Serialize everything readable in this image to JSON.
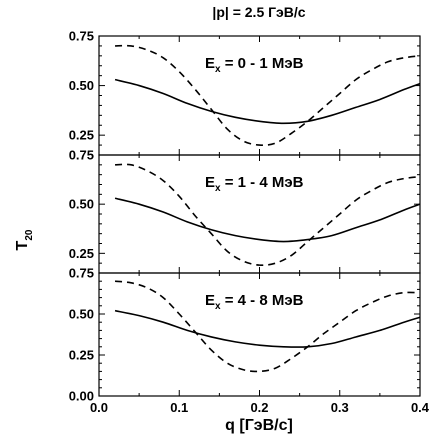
{
  "title": "|p| = 2.5 ГэВ/с",
  "x_axis": {
    "label": "q [ГэВ/с]",
    "ticks": [
      "0.0",
      "0.1",
      "0.2",
      "0.3",
      "0.4"
    ]
  },
  "y_axis": {
    "label_main": "T",
    "label_sub": "20"
  },
  "bottom_y_tick_labels": [
    "0.00",
    "0.25",
    "0.50",
    "0.75"
  ],
  "upper_y_tick_labels": [
    "0.25",
    "0.50",
    "0.75"
  ],
  "chart_data": [
    {
      "type": "line",
      "panel_label": {
        "main": "E",
        "sub": "x",
        "rest": " = 0 - 1 МэВ"
      },
      "xlim": [
        0,
        0.4
      ],
      "ylim": [
        0.15,
        0.75
      ],
      "series": [
        {
          "style": "solid",
          "x": [
            0.02,
            0.05,
            0.08,
            0.11,
            0.14,
            0.17,
            0.2,
            0.23,
            0.26,
            0.29,
            0.32,
            0.35,
            0.38,
            0.4
          ],
          "y": [
            0.53,
            0.5,
            0.46,
            0.41,
            0.37,
            0.34,
            0.32,
            0.31,
            0.32,
            0.35,
            0.39,
            0.43,
            0.48,
            0.51
          ]
        },
        {
          "style": "dashed",
          "x": [
            0.02,
            0.04,
            0.06,
            0.08,
            0.1,
            0.12,
            0.14,
            0.16,
            0.18,
            0.2,
            0.22,
            0.24,
            0.26,
            0.28,
            0.3,
            0.32,
            0.34,
            0.36,
            0.38,
            0.4
          ],
          "y": [
            0.7,
            0.7,
            0.68,
            0.64,
            0.57,
            0.48,
            0.38,
            0.28,
            0.22,
            0.2,
            0.21,
            0.26,
            0.32,
            0.39,
            0.46,
            0.53,
            0.58,
            0.62,
            0.64,
            0.65
          ]
        }
      ]
    },
    {
      "type": "line",
      "panel_label": {
        "main": "E",
        "sub": "x",
        "rest": " = 1 - 4 МэВ"
      },
      "xlim": [
        0,
        0.4
      ],
      "ylim": [
        0.15,
        0.75
      ],
      "series": [
        {
          "style": "solid",
          "x": [
            0.02,
            0.05,
            0.08,
            0.11,
            0.14,
            0.17,
            0.2,
            0.23,
            0.26,
            0.29,
            0.32,
            0.35,
            0.38,
            0.4
          ],
          "y": [
            0.53,
            0.5,
            0.46,
            0.41,
            0.37,
            0.34,
            0.32,
            0.31,
            0.32,
            0.34,
            0.38,
            0.42,
            0.47,
            0.5
          ]
        },
        {
          "style": "dashed",
          "x": [
            0.02,
            0.04,
            0.06,
            0.08,
            0.1,
            0.12,
            0.14,
            0.16,
            0.18,
            0.2,
            0.22,
            0.24,
            0.26,
            0.28,
            0.3,
            0.32,
            0.34,
            0.36,
            0.38,
            0.4
          ],
          "y": [
            0.7,
            0.7,
            0.67,
            0.62,
            0.54,
            0.44,
            0.35,
            0.26,
            0.21,
            0.19,
            0.2,
            0.24,
            0.31,
            0.38,
            0.45,
            0.52,
            0.57,
            0.61,
            0.63,
            0.64
          ]
        }
      ]
    },
    {
      "type": "line",
      "panel_label": {
        "main": "E",
        "sub": "x",
        "rest": " = 4 - 8 МэВ"
      },
      "xlim": [
        0,
        0.4
      ],
      "ylim": [
        0,
        0.75
      ],
      "series": [
        {
          "style": "solid",
          "x": [
            0.02,
            0.05,
            0.08,
            0.11,
            0.14,
            0.17,
            0.2,
            0.23,
            0.26,
            0.29,
            0.32,
            0.35,
            0.38,
            0.4
          ],
          "y": [
            0.52,
            0.49,
            0.45,
            0.4,
            0.36,
            0.33,
            0.31,
            0.3,
            0.3,
            0.32,
            0.36,
            0.4,
            0.45,
            0.48
          ]
        },
        {
          "style": "dashed",
          "x": [
            0.02,
            0.04,
            0.06,
            0.08,
            0.1,
            0.12,
            0.14,
            0.16,
            0.18,
            0.2,
            0.22,
            0.24,
            0.26,
            0.28,
            0.3,
            0.32,
            0.34,
            0.36,
            0.38,
            0.4
          ],
          "y": [
            0.7,
            0.69,
            0.66,
            0.6,
            0.5,
            0.39,
            0.28,
            0.2,
            0.16,
            0.15,
            0.17,
            0.23,
            0.3,
            0.38,
            0.45,
            0.52,
            0.57,
            0.61,
            0.63,
            0.63
          ]
        }
      ]
    }
  ]
}
